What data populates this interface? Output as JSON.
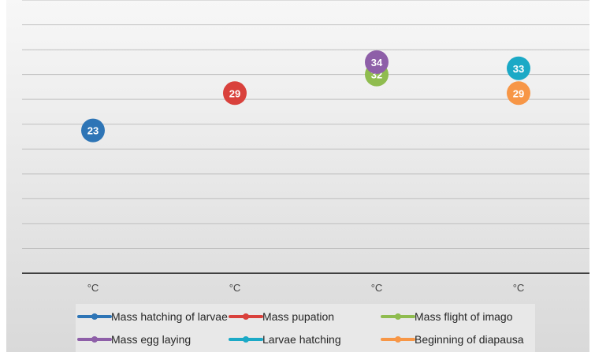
{
  "chart_data": {
    "type": "scatter",
    "title": "",
    "xlabel": "",
    "ylabel": "",
    "categories": [
      "°C",
      "°C",
      "°C",
      "°C"
    ],
    "ylim": [
      0,
      44
    ],
    "y_tick_step": 4,
    "grid": true,
    "legend_position": "bottom",
    "series": [
      {
        "name": "Mass hatching of larvae",
        "color": "#2E75B6",
        "points": [
          {
            "x": 1,
            "y": 23
          }
        ]
      },
      {
        "name": "Mass pupation",
        "color": "#D9413C",
        "points": [
          {
            "x": 2,
            "y": 29
          }
        ]
      },
      {
        "name": "Mass flight of imago",
        "color": "#8FBC4F",
        "points": [
          {
            "x": 3,
            "y": 32
          }
        ]
      },
      {
        "name": "Mass egg laying",
        "color": "#8E5FA8",
        "points": [
          {
            "x": 3,
            "y": 34
          }
        ]
      },
      {
        "name": "Larvae hatching",
        "color": "#1BA9C6",
        "points": [
          {
            "x": 4,
            "y": 33
          }
        ]
      },
      {
        "name": "Beginning of diapausa",
        "color": "#F79646",
        "points": [
          {
            "x": 4,
            "y": 29
          }
        ]
      }
    ]
  }
}
